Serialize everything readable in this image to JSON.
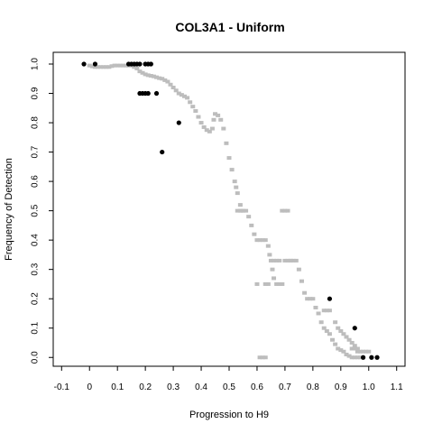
{
  "chart_data": {
    "type": "scatter",
    "title": "COL3A1 - Uniform",
    "xlabel": "Progression to H9",
    "ylabel": "Frequency of Detection",
    "xlim": [
      -0.13,
      1.13
    ],
    "ylim": [
      -0.03,
      1.04
    ],
    "x_ticks": [
      "-0.1",
      "0",
      "0.1",
      "0.2",
      "0.3",
      "0.4",
      "0.5",
      "0.6",
      "0.7",
      "0.8",
      "0.9",
      "1.0",
      "1.1"
    ],
    "y_ticks": [
      "0.0",
      "0.1",
      "0.2",
      "0.3",
      "0.4",
      "0.5",
      "0.6",
      "0.7",
      "0.8",
      "0.9",
      "1.0"
    ],
    "series": [
      {
        "color": "#bdbdbd",
        "marker": "square",
        "points": [
          [
            0.0,
            0.995
          ],
          [
            0.01,
            0.992
          ],
          [
            0.02,
            0.99
          ],
          [
            0.03,
            0.99
          ],
          [
            0.04,
            0.99
          ],
          [
            0.05,
            0.99
          ],
          [
            0.06,
            0.99
          ],
          [
            0.07,
            0.99
          ],
          [
            0.08,
            0.993
          ],
          [
            0.09,
            0.995
          ],
          [
            0.1,
            0.995
          ],
          [
            0.11,
            0.995
          ],
          [
            0.12,
            0.995
          ],
          [
            0.13,
            0.995
          ],
          [
            0.14,
            0.995
          ],
          [
            0.15,
            0.995
          ],
          [
            0.16,
            0.99
          ],
          [
            0.17,
            0.985
          ],
          [
            0.18,
            0.975
          ],
          [
            0.19,
            0.97
          ],
          [
            0.2,
            0.965
          ],
          [
            0.21,
            0.962
          ],
          [
            0.22,
            0.96
          ],
          [
            0.23,
            0.958
          ],
          [
            0.24,
            0.955
          ],
          [
            0.25,
            0.952
          ],
          [
            0.26,
            0.95
          ],
          [
            0.27,
            0.945
          ],
          [
            0.28,
            0.94
          ],
          [
            0.29,
            0.93
          ],
          [
            0.3,
            0.92
          ],
          [
            0.31,
            0.91
          ],
          [
            0.32,
            0.9
          ],
          [
            0.33,
            0.895
          ],
          [
            0.34,
            0.89
          ],
          [
            0.35,
            0.885
          ],
          [
            0.36,
            0.87
          ],
          [
            0.37,
            0.855
          ],
          [
            0.38,
            0.84
          ],
          [
            0.39,
            0.82
          ],
          [
            0.4,
            0.8
          ],
          [
            0.41,
            0.785
          ],
          [
            0.42,
            0.775
          ],
          [
            0.43,
            0.77
          ],
          [
            0.44,
            0.78
          ],
          [
            0.445,
            0.81
          ],
          [
            0.45,
            0.83
          ],
          [
            0.46,
            0.825
          ],
          [
            0.47,
            0.81
          ],
          [
            0.48,
            0.78
          ],
          [
            0.49,
            0.73
          ],
          [
            0.5,
            0.68
          ],
          [
            0.51,
            0.64
          ],
          [
            0.52,
            0.6
          ],
          [
            0.525,
            0.58
          ],
          [
            0.53,
            0.56
          ],
          [
            0.54,
            0.52
          ],
          [
            0.545,
            0.5
          ],
          [
            0.55,
            0.5
          ],
          [
            0.56,
            0.5
          ],
          [
            0.57,
            0.48
          ],
          [
            0.58,
            0.45
          ],
          [
            0.59,
            0.42
          ],
          [
            0.6,
            0.4
          ],
          [
            0.61,
            0.4
          ],
          [
            0.62,
            0.4
          ],
          [
            0.63,
            0.4
          ],
          [
            0.64,
            0.38
          ],
          [
            0.645,
            0.35
          ],
          [
            0.65,
            0.33
          ],
          [
            0.655,
            0.3
          ],
          [
            0.66,
            0.27
          ],
          [
            0.67,
            0.25
          ],
          [
            0.68,
            0.25
          ],
          [
            0.69,
            0.25
          ],
          [
            0.7,
            0.33
          ],
          [
            0.71,
            0.33
          ],
          [
            0.72,
            0.33
          ],
          [
            0.73,
            0.33
          ],
          [
            0.74,
            0.33
          ],
          [
            0.75,
            0.3
          ],
          [
            0.76,
            0.26
          ],
          [
            0.77,
            0.22
          ],
          [
            0.78,
            0.2
          ],
          [
            0.79,
            0.2
          ],
          [
            0.8,
            0.2
          ],
          [
            0.81,
            0.17
          ],
          [
            0.82,
            0.15
          ],
          [
            0.83,
            0.12
          ],
          [
            0.84,
            0.1
          ],
          [
            0.85,
            0.09
          ],
          [
            0.86,
            0.08
          ],
          [
            0.87,
            0.06
          ],
          [
            0.88,
            0.045
          ],
          [
            0.89,
            0.03
          ],
          [
            0.9,
            0.025
          ],
          [
            0.91,
            0.02
          ],
          [
            0.92,
            0.01
          ],
          [
            0.93,
            0.005
          ],
          [
            0.94,
            0.0
          ],
          [
            0.95,
            0.0
          ],
          [
            0.96,
            0.0
          ],
          [
            0.97,
            0.0
          ],
          [
            0.98,
            0.02
          ],
          [
            0.99,
            0.02
          ],
          [
            1.0,
            0.02
          ],
          [
            0.6,
            0.25
          ],
          [
            0.61,
            0.0
          ],
          [
            0.62,
            0.0
          ],
          [
            0.63,
            0.0
          ],
          [
            0.53,
            0.5
          ],
          [
            0.54,
            0.5
          ],
          [
            0.69,
            0.5
          ],
          [
            0.7,
            0.5
          ],
          [
            0.71,
            0.5
          ],
          [
            0.72,
            0.33
          ],
          [
            0.66,
            0.33
          ],
          [
            0.67,
            0.33
          ],
          [
            0.68,
            0.33
          ],
          [
            0.63,
            0.25
          ],
          [
            0.64,
            0.25
          ],
          [
            0.84,
            0.16
          ],
          [
            0.85,
            0.16
          ],
          [
            0.86,
            0.16
          ],
          [
            0.88,
            0.12
          ],
          [
            0.89,
            0.1
          ],
          [
            0.9,
            0.09
          ],
          [
            0.91,
            0.08
          ],
          [
            0.92,
            0.07
          ],
          [
            0.93,
            0.06
          ],
          [
            0.94,
            0.05
          ],
          [
            0.95,
            0.04
          ],
          [
            0.96,
            0.03
          ],
          [
            0.97,
            0.02
          ],
          [
            0.94,
            0.03
          ],
          [
            0.95,
            0.03
          ],
          [
            0.96,
            0.02
          ]
        ]
      },
      {
        "color": "#000000",
        "marker": "circle",
        "points": [
          [
            -0.02,
            1.0
          ],
          [
            0.02,
            1.0
          ],
          [
            0.14,
            1.0
          ],
          [
            0.15,
            1.0
          ],
          [
            0.16,
            1.0
          ],
          [
            0.17,
            1.0
          ],
          [
            0.18,
            1.0
          ],
          [
            0.2,
            1.0
          ],
          [
            0.21,
            1.0
          ],
          [
            0.22,
            1.0
          ],
          [
            0.18,
            0.9
          ],
          [
            0.19,
            0.9
          ],
          [
            0.2,
            0.9
          ],
          [
            0.21,
            0.9
          ],
          [
            0.24,
            0.9
          ],
          [
            0.32,
            0.8
          ],
          [
            0.26,
            0.7
          ],
          [
            0.86,
            0.2
          ],
          [
            0.95,
            0.1
          ],
          [
            0.98,
            0.0
          ],
          [
            1.01,
            0.0
          ],
          [
            1.03,
            0.0
          ]
        ]
      }
    ]
  }
}
